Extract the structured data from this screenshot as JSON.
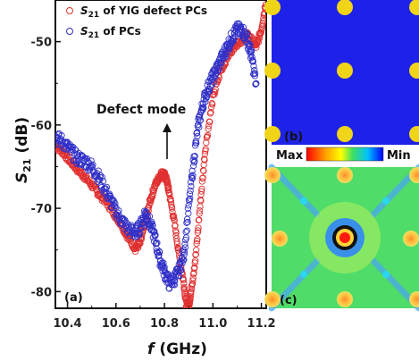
{
  "chart_data": {
    "type": "scatter",
    "xlabel_italic": "f",
    "xlabel_unit": " (GHz)",
    "ylabel_main": "S",
    "ylabel_sub": "21",
    "ylabel_unit": " (dB)",
    "xlim": [
      10.35,
      11.22
    ],
    "ylim": [
      -82,
      -45
    ],
    "xticks": [
      10.4,
      10.6,
      10.8,
      11.0,
      11.2
    ],
    "xtick_labels": [
      "10.4",
      "10.6",
      "10.8",
      "11.0",
      "11.2"
    ],
    "yticks": [
      -80,
      -70,
      -60,
      -50
    ],
    "ytick_labels": [
      "-80",
      "-70",
      "-60",
      "-50"
    ],
    "legend_position": "top-left",
    "series": [
      {
        "name_main": "S",
        "name_sub": "21",
        "name_rest": " of YIG defect PCs",
        "color": "#e03030",
        "x": [
          10.35,
          10.38,
          10.41,
          10.44,
          10.47,
          10.5,
          10.53,
          10.56,
          10.59,
          10.62,
          10.65,
          10.68,
          10.7,
          10.72,
          10.74,
          10.76,
          10.78,
          10.79,
          10.8,
          10.81,
          10.82,
          10.84,
          10.86,
          10.88,
          10.89,
          10.9,
          10.91,
          10.93,
          10.95,
          10.97,
          11.0,
          11.03,
          11.06,
          11.09,
          11.12,
          11.14,
          11.16,
          11.18,
          11.2,
          11.22
        ],
        "y": [
          -62.5,
          -63.2,
          -64.3,
          -65.3,
          -66.2,
          -67.2,
          -68.3,
          -69.2,
          -70.5,
          -71.8,
          -73.5,
          -74.8,
          -74.2,
          -71.8,
          -69.2,
          -67.3,
          -66.2,
          -65.8,
          -66.0,
          -66.7,
          -68.2,
          -71.5,
          -75.5,
          -79.0,
          -81.5,
          -81.8,
          -80.0,
          -75.5,
          -68.8,
          -62.5,
          -56.8,
          -53.6,
          -51.8,
          -50.4,
          -49.8,
          -49.2,
          -49.8,
          -50.6,
          -48.5,
          -45.0
        ]
      },
      {
        "name_main": "S",
        "name_sub": "21",
        "name_rest": " of PCs",
        "color": "#3030c8",
        "x": [
          10.35,
          10.38,
          10.41,
          10.44,
          10.47,
          10.5,
          10.53,
          10.56,
          10.59,
          10.62,
          10.65,
          10.68,
          10.7,
          10.72,
          10.74,
          10.76,
          10.78,
          10.8,
          10.82,
          10.84,
          10.86,
          10.88,
          10.9,
          10.92,
          10.94,
          10.96,
          10.98,
          11.0,
          11.02,
          11.04,
          11.06,
          11.08,
          11.1,
          11.12,
          11.14,
          11.16,
          11.18
        ],
        "y": [
          -61.5,
          -62.0,
          -63.0,
          -64.0,
          -64.3,
          -65.0,
          -66.3,
          -68.0,
          -69.8,
          -71.3,
          -72.5,
          -73.0,
          -72.2,
          -70.5,
          -71.8,
          -73.5,
          -76.0,
          -77.6,
          -79.0,
          -78.5,
          -77.5,
          -75.5,
          -70.0,
          -64.5,
          -60.0,
          -57.3,
          -55.5,
          -54.3,
          -53.0,
          -51.8,
          -50.6,
          -49.4,
          -48.6,
          -48.6,
          -49.6,
          -51.8,
          -55.5
        ]
      }
    ],
    "annotation": {
      "text": "Defect mode",
      "x": 10.8,
      "y": -66.5
    },
    "panel_a": "(a)",
    "panel_b": "(b)",
    "panel_c": "(c)",
    "colorbar_max": "Max",
    "colorbar_min": "Min",
    "colors": {
      "lattice_background": "#1e22e8",
      "rod": "#f0d418"
    }
  }
}
